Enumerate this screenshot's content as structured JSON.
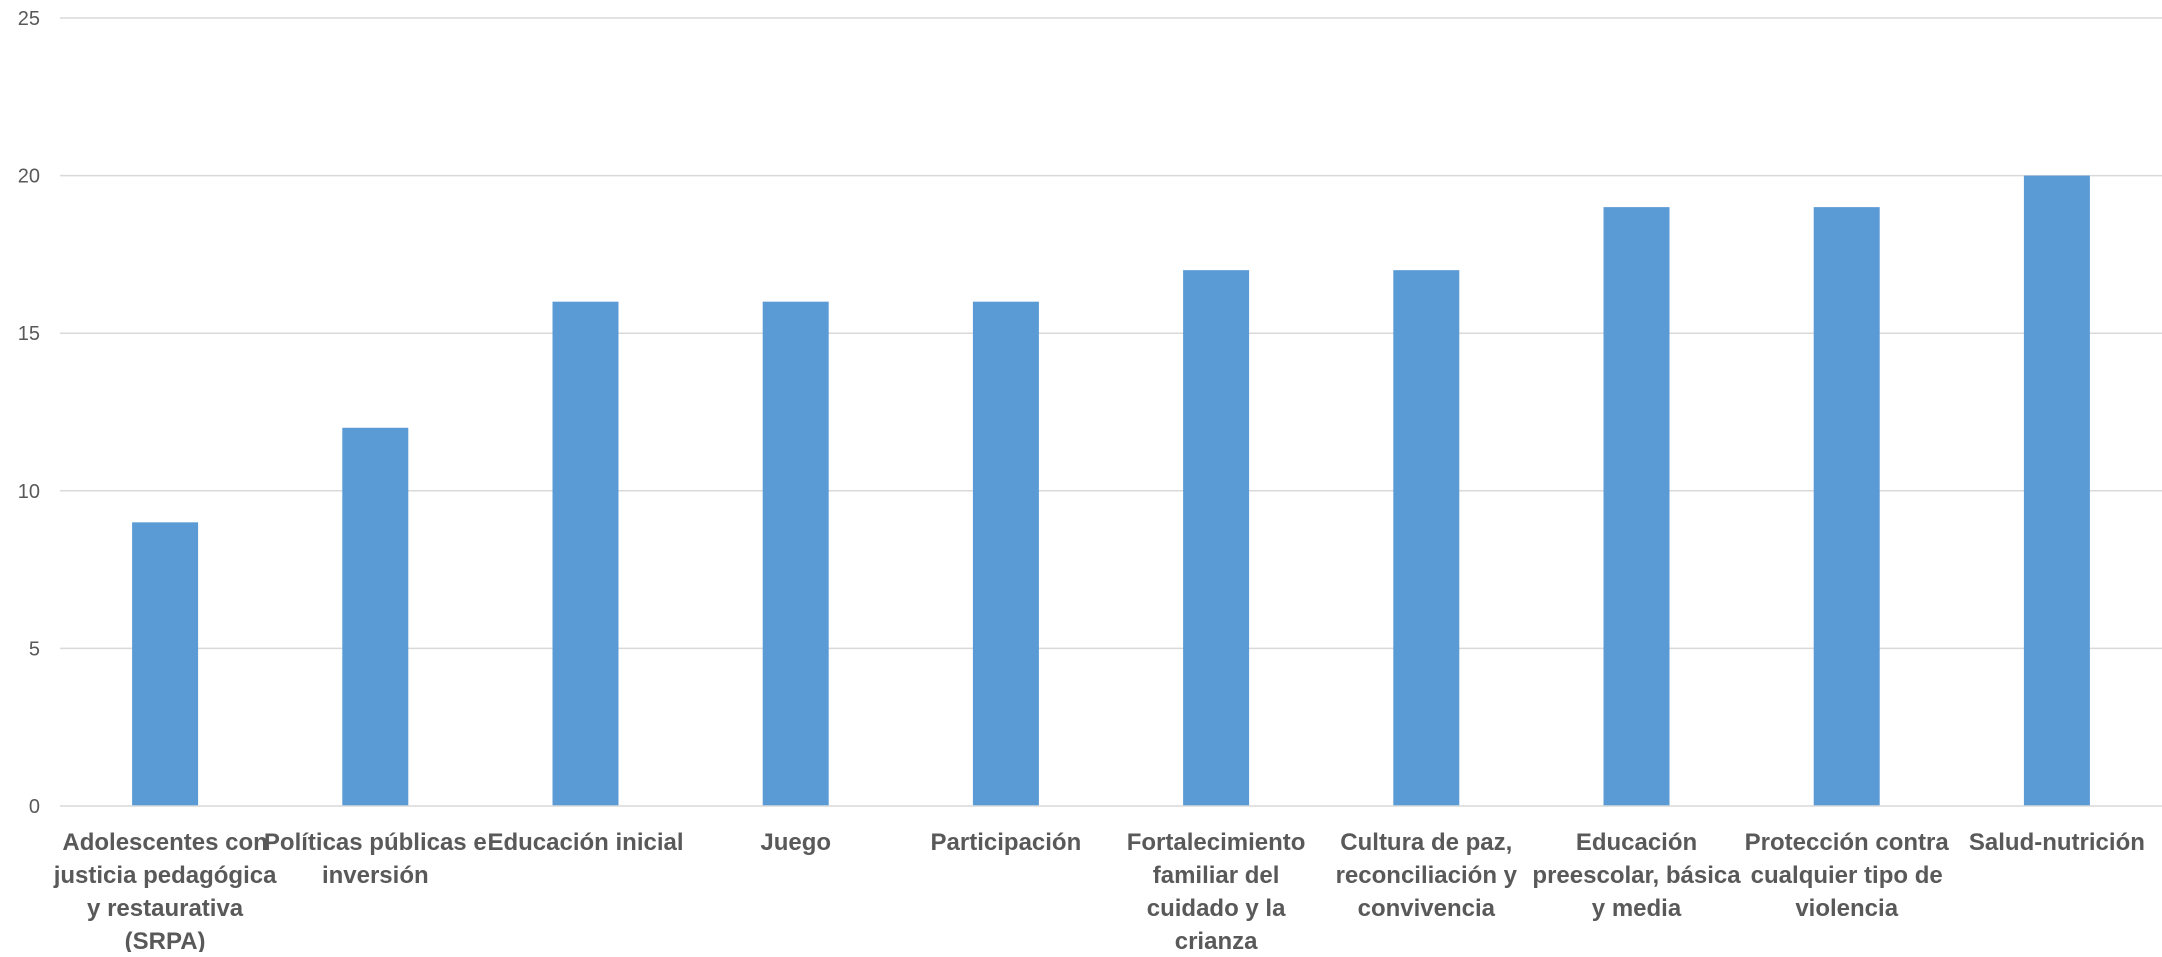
{
  "chart_data": {
    "type": "bar",
    "title": "",
    "xlabel": "",
    "ylabel": "",
    "ylim": [
      0,
      25
    ],
    "yticks": [
      0,
      5,
      10,
      15,
      20,
      25
    ],
    "grid": true,
    "legend": "none",
    "bar_color": "#5b9bd5",
    "categories": [
      [
        "Adolescentes con",
        "justicia pedagógica",
        "y restaurativa",
        "(SRPA)"
      ],
      [
        "Políticas públicas e",
        "inversión"
      ],
      [
        "Educación inicial"
      ],
      [
        "Juego"
      ],
      [
        "Participación"
      ],
      [
        "Fortalecimiento",
        "familiar del",
        "cuidado y la",
        "crianza"
      ],
      [
        "Cultura de paz,",
        "reconciliación y",
        "convivencia"
      ],
      [
        "Educación",
        "preescolar, básica",
        "y media"
      ],
      [
        "Protección contra",
        "cualquier tipo de",
        "violencia"
      ],
      [
        "Salud-nutrición"
      ]
    ],
    "values": [
      9,
      12,
      16,
      16,
      16,
      17,
      17,
      19,
      19,
      20
    ]
  }
}
